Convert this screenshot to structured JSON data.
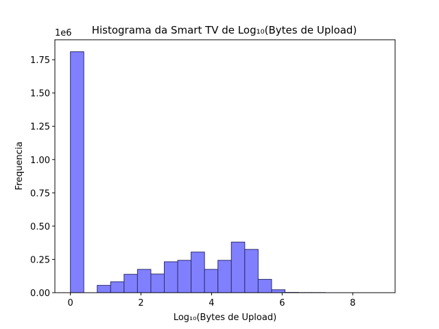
{
  "chart_data": {
    "type": "bar",
    "title": "Histograma da Smart TV de Log₁₀(Bytes de Upload)",
    "xlabel": "Log₁₀(Bytes de Upload)",
    "ylabel": "Frequencia",
    "y_offset_label": "1e6",
    "xlim": [
      -0.44,
      9.2
    ],
    "ylim": [
      0,
      1.9
    ],
    "x_ticks": [
      0,
      2,
      4,
      6,
      8
    ],
    "x_tick_labels": [
      "0",
      "2",
      "4",
      "6",
      "8"
    ],
    "y_ticks": [
      0,
      0.25,
      0.5,
      0.75,
      1.0,
      1.25,
      1.5,
      1.75
    ],
    "y_tick_labels": [
      "0.00",
      "0.25",
      "0.50",
      "0.75",
      "1.00",
      "1.25",
      "1.50",
      "1.75"
    ],
    "grid": false,
    "bin_edges": [
      0,
      0.38,
      0.76,
      1.14,
      1.52,
      1.9,
      2.28,
      2.66,
      3.04,
      3.42,
      3.8,
      4.18,
      4.56,
      4.94,
      5.32,
      5.7,
      6.08,
      6.46,
      6.84,
      7.22,
      7.6,
      7.98,
      8.36,
      8.74
    ],
    "counts_scaled_1e6": [
      1.81,
      0.0,
      0.055,
      0.082,
      0.138,
      0.175,
      0.14,
      0.232,
      0.243,
      0.305,
      0.175,
      0.243,
      0.38,
      0.325,
      0.1,
      0.022,
      0.002,
      0.001,
      0.001,
      0.0,
      0.0,
      0.0,
      0.0
    ],
    "colors": {
      "bar_fill": "#8080ff",
      "bar_edge": "#2b2b6e"
    }
  }
}
